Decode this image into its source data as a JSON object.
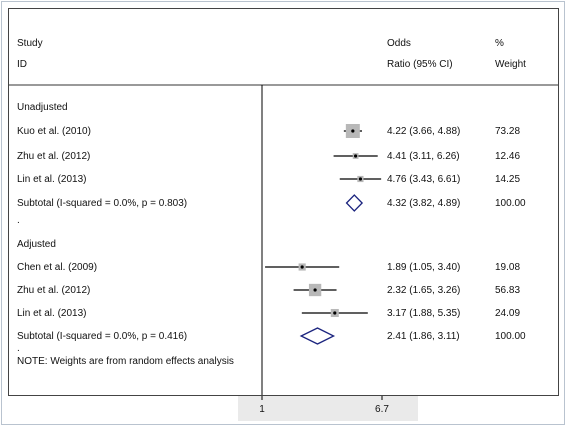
{
  "chart_data": {
    "type": "forest",
    "headers": {
      "study": "Study",
      "id": "ID",
      "odds": "Odds",
      "ratio_ci": "Ratio (95% CI)",
      "pct": "%",
      "weight": "Weight"
    },
    "x_axis": {
      "ticks": [
        {
          "value": 1,
          "label": "1"
        },
        {
          "value": 6.7,
          "label": "6.7"
        }
      ],
      "log_scale": true,
      "null_line": 1
    },
    "groups": [
      {
        "label": "Unadjusted",
        "studies": [
          {
            "name": "Kuo et al. (2010)",
            "or": 4.22,
            "lo": 3.66,
            "hi": 4.88,
            "ci_text": "4.22 (3.66, 4.88)",
            "weight": 73.28,
            "weight_text": "73.28"
          },
          {
            "name": "Zhu et al. (2012)",
            "or": 4.41,
            "lo": 3.11,
            "hi": 6.26,
            "ci_text": "4.41 (3.11, 6.26)",
            "weight": 12.46,
            "weight_text": "12.46"
          },
          {
            "name": "Lin et al. (2013)",
            "or": 4.76,
            "lo": 3.43,
            "hi": 6.61,
            "ci_text": "4.76 (3.43, 6.61)",
            "weight": 14.25,
            "weight_text": "14.25"
          }
        ],
        "subtotal": {
          "label": "Subtotal  (I-squared = 0.0%, p = 0.803)",
          "or": 4.32,
          "lo": 3.82,
          "hi": 4.89,
          "ci_text": "4.32 (3.82, 4.89)",
          "weight_text": "100.00"
        }
      },
      {
        "label": "Adjusted",
        "studies": [
          {
            "name": "Chen et al. (2009)",
            "or": 1.89,
            "lo": 1.05,
            "hi": 3.4,
            "ci_text": "1.89 (1.05, 3.40)",
            "weight": 19.08,
            "weight_text": "19.08"
          },
          {
            "name": "Zhu et al. (2012)",
            "or": 2.32,
            "lo": 1.65,
            "hi": 3.26,
            "ci_text": "2.32 (1.65, 3.26)",
            "weight": 56.83,
            "weight_text": "56.83"
          },
          {
            "name": "Lin et al. (2013)",
            "or": 3.17,
            "lo": 1.88,
            "hi": 5.35,
            "ci_text": "3.17 (1.88, 5.35)",
            "weight": 24.09,
            "weight_text": "24.09"
          }
        ],
        "subtotal": {
          "label": "Subtotal  (I-squared = 0.0%, p = 0.416)",
          "or": 2.41,
          "lo": 1.86,
          "hi": 3.11,
          "ci_text": "2.41 (1.86, 3.11)",
          "weight_text": "100.00"
        }
      }
    ],
    "separator_dot": ".",
    "note": "NOTE: Weights are from random effects analysis",
    "colors": {
      "marker_box": "#b8b8b8",
      "diamond": "#1a237e",
      "line": "#000000",
      "axis_shade": "#eaeaea"
    }
  }
}
